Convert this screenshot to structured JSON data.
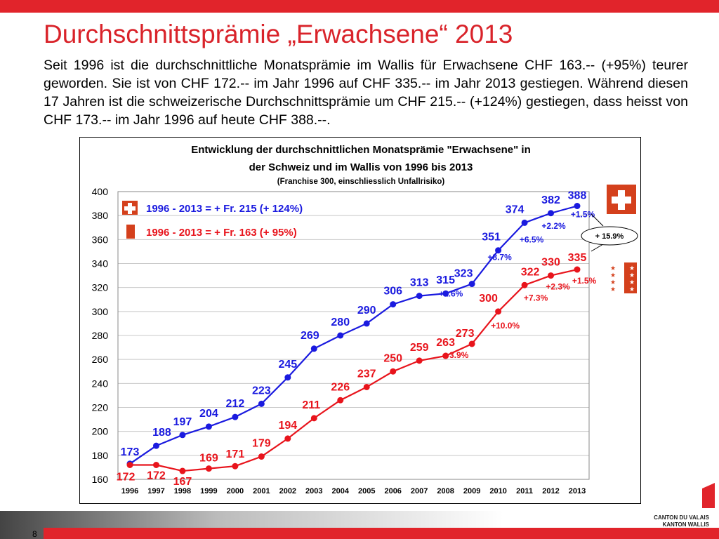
{
  "slide": {
    "title": "Durchschnittsprämie „Erwachsene“ 2013",
    "intro": "Seit 1996 ist die durchschnittliche Monatsprämie im Wallis für Erwachsene CHF 163.-- (+95%) teurer geworden. Sie ist von CHF 172.-- im Jahr 1996 auf CHF 335.-- im Jahr 2013 gestiegen. Während diesen 17 Jahren ist die schweizerische Durchschnittsprämie um CHF 215.-- (+124%) gestiegen, dass heisst von CHF 173.-- im Jahr 1996 auf heute CHF 388.--.",
    "page_number": "8",
    "logo": {
      "line1": "CANTON DU VALAIS",
      "line2": "KANTON WALLIS"
    }
  },
  "chart_data": {
    "type": "line",
    "title_line1": "Entwicklung der durchschnittlichen Monatsprämie \"Erwachsene\" in",
    "title_line2": "der Schweiz und im Wallis von 1996 bis 2013",
    "subtitle": "(Franchise 300, einschliesslich Unfallrisiko)",
    "x": [
      "1996",
      "1997",
      "1998",
      "1999",
      "2000",
      "2001",
      "2002",
      "2003",
      "2004",
      "2005",
      "2006",
      "2007",
      "2008",
      "2009",
      "2010",
      "2011",
      "2012",
      "2013"
    ],
    "ylim": [
      160,
      400
    ],
    "yticks": [
      160,
      180,
      200,
      220,
      240,
      260,
      280,
      300,
      320,
      340,
      360,
      380,
      400
    ],
    "grid": true,
    "series": [
      {
        "color": "#1a1adf",
        "values": [
          173,
          188,
          197,
          204,
          212,
          223,
          245,
          269,
          280,
          290,
          306,
          313,
          315,
          323,
          351,
          374,
          382,
          388
        ],
        "pct": {
          "2009": "+2.6%",
          "2010": "+8.7%",
          "2011": "+6.5%",
          "2012": "+2.2%",
          "2013": "+1.5%"
        }
      },
      {
        "color": "#e8141c",
        "values": [
          172,
          172,
          167,
          169,
          171,
          179,
          194,
          211,
          226,
          237,
          250,
          259,
          263,
          273,
          300,
          322,
          330,
          335
        ],
        "pct": {
          "2009": "+3.9%",
          "2010": "+10.0%",
          "2011": "+7.3%",
          "2012": "+2.3%",
          "2013": "+1.5%"
        }
      }
    ],
    "legend": [
      {
        "icon": "swiss-flag-icon",
        "text": "1996 - 2013 =  + Fr. 215 (+ 124%)",
        "color": "#1a1adf"
      },
      {
        "icon": "valais-flag-icon",
        "text": "1996 - 2013 =  + Fr. 163 (+ 95%)",
        "color": "#e8141c"
      }
    ],
    "callout": "+ 15.9%",
    "flag_colors": {
      "swiss": "#d4401c",
      "valais": "#d4401c"
    }
  }
}
